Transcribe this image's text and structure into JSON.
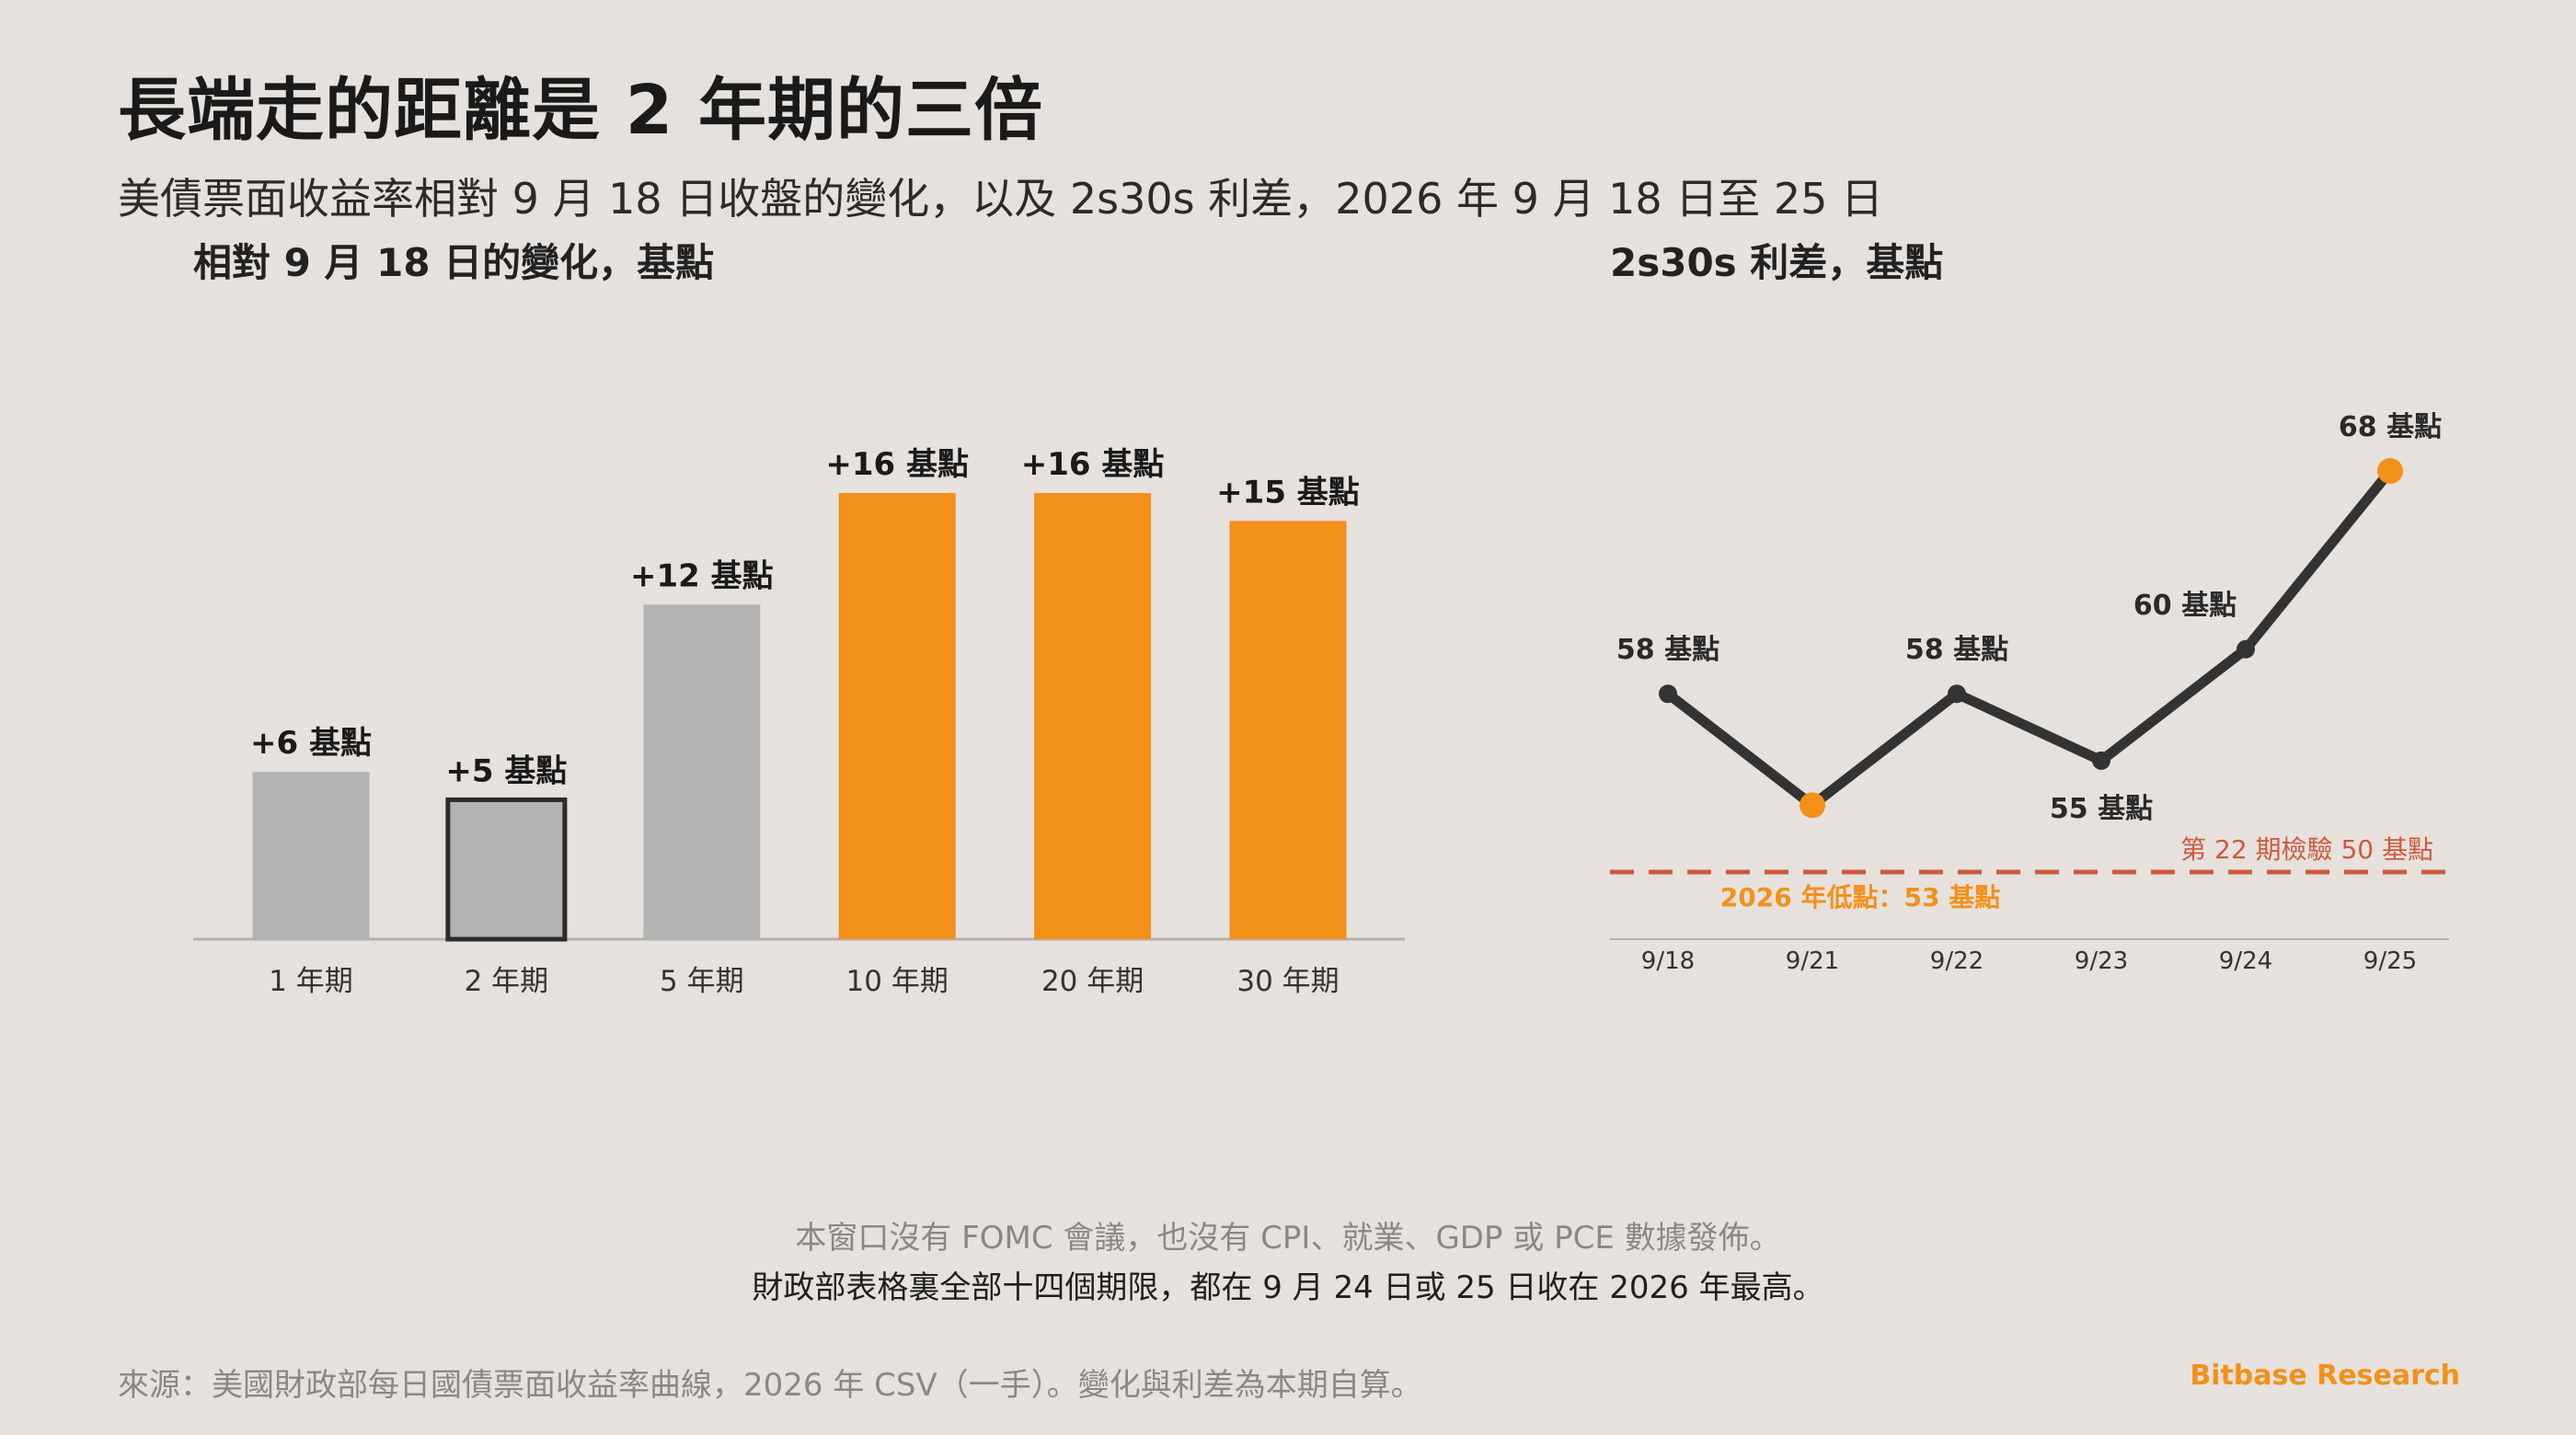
{
  "title": "長端走的距離是 2 年期的三倍",
  "subtitle": "美債票面收益率相對 9 月 18 日收盤的變化，以及 2s30s 利差，2026 年 9 月 18 日至 25 日",
  "colors": {
    "gray": "#b3b3b3",
    "orange": "#f39019",
    "dark": "#333333",
    "threshold": "#cc5a3f",
    "axis": "#b5b0ab"
  },
  "chart_data": [
    {
      "type": "bar",
      "title": "相對 9 月 18 日的變化，基點",
      "categories": [
        "1 年期",
        "2 年期",
        "5 年期",
        "10 年期",
        "20 年期",
        "30 年期"
      ],
      "values": [
        6,
        5,
        12,
        16,
        16,
        15
      ],
      "labels": [
        "+6 基點",
        "+5 基點",
        "+12 基點",
        "+16 基點",
        "+16 基點",
        "+15 基點"
      ],
      "bar_colors": [
        "gray",
        "gray",
        "gray",
        "orange",
        "orange",
        "orange"
      ],
      "highlighted": "2 年期",
      "ylim": [
        0,
        16
      ],
      "grid": false
    },
    {
      "type": "line",
      "title": "2s30s 利差，基點",
      "x": [
        "9/18",
        "9/21",
        "9/22",
        "9/23",
        "9/24",
        "9/25"
      ],
      "values": [
        58,
        53,
        58,
        55,
        60,
        68
      ],
      "point_labels": [
        "58 基點",
        "",
        "58 基點",
        "55 基點",
        "60 基點",
        "68 基點"
      ],
      "highlight_points": [
        "9/21",
        "9/25"
      ],
      "ylim": [
        50,
        68
      ],
      "threshold": {
        "value": 50,
        "label": "第 22 期檢驗 50 基點"
      },
      "annotation": "2026 年低點：53 基點",
      "grid": false
    }
  ],
  "notes": {
    "line1": "本窗口沒有 FOMC 會議，也沒有 CPI、就業、GDP 或 PCE 數據發佈。",
    "line2": "財政部表格裏全部十四個期限，都在 9 月 24 日或 25 日收在 2026 年最高。"
  },
  "source": "來源：美國財政部每日國債票面收益率曲線，2026 年 CSV（一手）。變化與利差為本期自算。",
  "brand": "Bitbase Research"
}
